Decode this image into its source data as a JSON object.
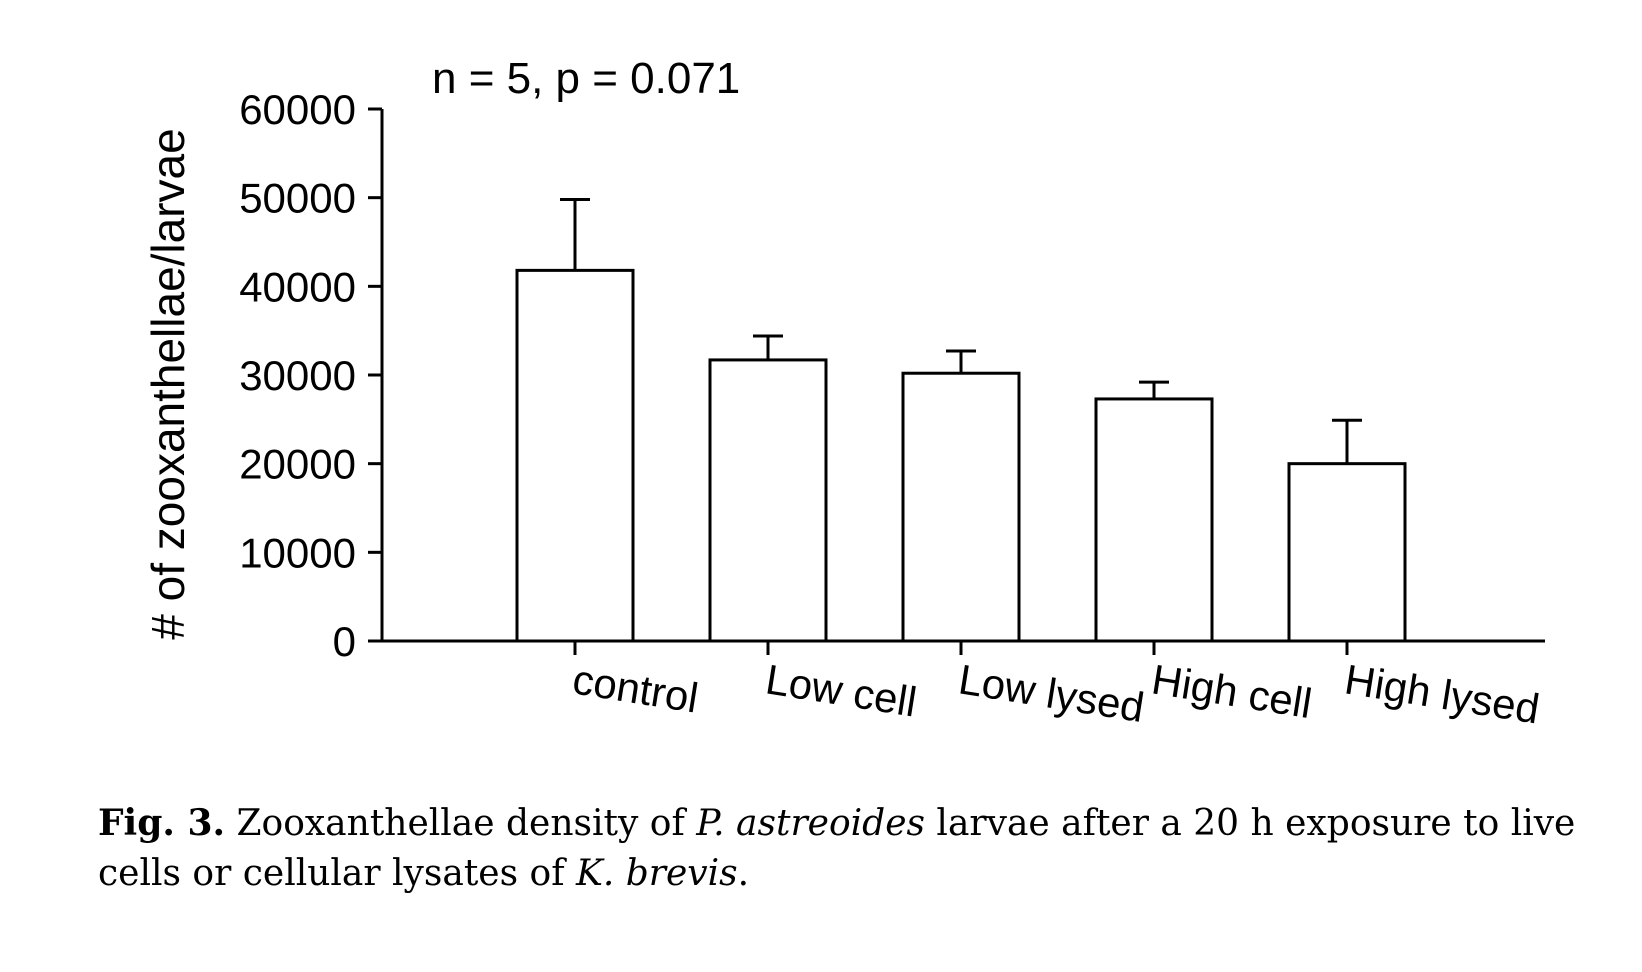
{
  "chart_data": {
    "type": "bar",
    "annotation": "n = 5, p = 0.071",
    "ylabel": "# of zooxanthellae/larvae",
    "xlabel": "",
    "ylim": [
      0,
      60000
    ],
    "yticks": [
      0,
      10000,
      20000,
      30000,
      40000,
      50000,
      60000
    ],
    "ytick_labels": [
      "0",
      "10000",
      "20000",
      "30000",
      "40000",
      "50000",
      "60000"
    ],
    "categories": [
      "control",
      "Low cell",
      "Low lysed",
      "High cell",
      "High lysed"
    ],
    "values": [
      41800,
      31700,
      30200,
      27300,
      20000
    ],
    "error_upper": [
      8000,
      2700,
      2500,
      1900,
      4900
    ],
    "grid": false,
    "legend": "none",
    "colors": {
      "bar_fill": "#ffffff",
      "bar_stroke": "#000000"
    }
  },
  "caption": {
    "label": "Fig. 3.",
    "text_1": " Zooxanthellae density of ",
    "species_1": "P. astreoides",
    "text_2": " larvae after a 20 h exposure to live cells or cellular lysates of ",
    "species_2": "K. brevis",
    "text_3": "."
  }
}
